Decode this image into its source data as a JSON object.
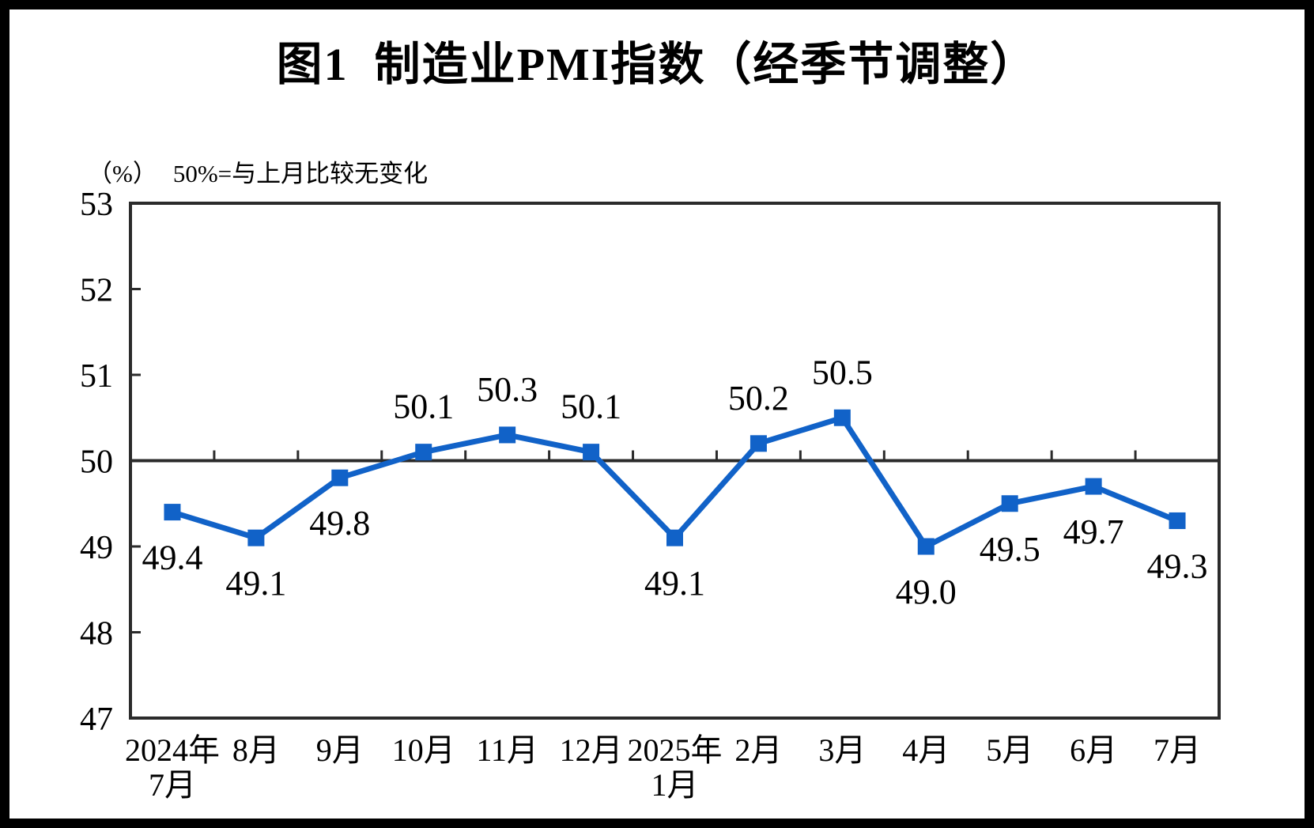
{
  "title": "图1  制造业PMI指数（经季节调整）",
  "subtitle": {
    "unit_label": "（%）",
    "note": "50%=与上月比较无变化"
  },
  "chart_data": {
    "type": "line",
    "title": "图1 制造业PMI指数（经季节调整）",
    "subtitle_note": "50%=与上月比较无变化",
    "y_unit": "%",
    "categories": [
      "2024年\n7月",
      "8月",
      "9月",
      "10月",
      "11月",
      "12月",
      "2025年\n1月",
      "2月",
      "3月",
      "4月",
      "5月",
      "6月",
      "7月"
    ],
    "values": [
      49.4,
      49.1,
      49.8,
      50.1,
      50.3,
      50.1,
      49.1,
      50.2,
      50.5,
      49.0,
      49.5,
      49.7,
      49.3
    ],
    "data_labels": [
      "49.4",
      "49.1",
      "49.8",
      "50.1",
      "50.3",
      "50.1",
      "49.1",
      "50.2",
      "50.5",
      "49.0",
      "49.5",
      "49.7",
      "49.3"
    ],
    "label_positions": [
      "below",
      "below",
      "below",
      "above",
      "above",
      "above",
      "below",
      "above",
      "above",
      "below",
      "below",
      "below",
      "below"
    ],
    "ylim": [
      47,
      53
    ],
    "yticks": [
      47,
      48,
      49,
      50,
      51,
      52,
      53
    ],
    "baseline_value": 50,
    "series_color": "#1162c8",
    "axis_color": "#2b2b2b",
    "text_color": "#000000",
    "grid": false,
    "legend": false,
    "marker": "square",
    "xlabel": "",
    "ylabel": "(%)"
  }
}
